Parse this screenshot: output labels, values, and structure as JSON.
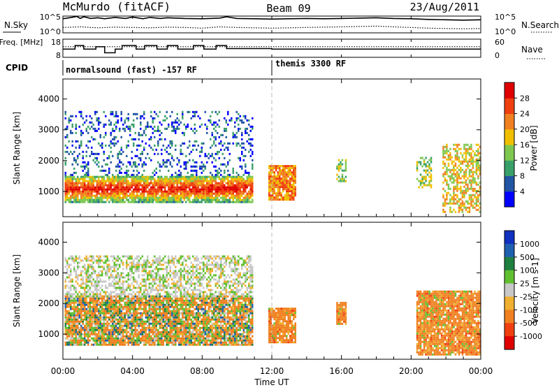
{
  "header": {
    "radar": "McMurdo (fitACF)",
    "beam": "Beam 09",
    "date": "23/Aug/2011"
  },
  "chart_data": [
    {
      "type": "line",
      "panel": "noise",
      "left_label": "N.Sky",
      "right_label": "N.Search",
      "left_ticks": [
        "10^5",
        "10^0"
      ],
      "right_ticks": [
        "10^5",
        "10^0"
      ],
      "series": [
        {
          "name": "N.Sky",
          "style": "solid",
          "x_hours": [
            0,
            0.5,
            0.8,
            1,
            1.2,
            1.6,
            2,
            2.4,
            3,
            3.6,
            4,
            4.6,
            5,
            5.6,
            6,
            7,
            8,
            9,
            9.4,
            10,
            11,
            12,
            13,
            14,
            15,
            16,
            17,
            18,
            19,
            20,
            21,
            22,
            23,
            24
          ],
          "values_log10": [
            4.2,
            4.6,
            4.9,
            4.3,
            4.8,
            4.3,
            4.5,
            4.2,
            4.6,
            4.3,
            4.7,
            4.2,
            4.6,
            4.3,
            4.5,
            4.3,
            4.2,
            4.4,
            4.8,
            4.3,
            4.2,
            4.1,
            4.2,
            4.3,
            4.2,
            4.3,
            4.4,
            4.5,
            4.3,
            4.2,
            4.0,
            3.9,
            3.8,
            3.9
          ]
        },
        {
          "name": "N.Search",
          "style": "dotted",
          "x_hours": [
            0,
            1,
            2,
            3,
            4,
            5,
            6,
            7,
            8,
            9,
            10,
            11,
            12,
            13,
            14,
            15,
            16,
            17,
            18,
            19,
            20,
            21,
            22,
            23,
            24
          ],
          "values_log10": [
            1.6,
            1.8,
            1.5,
            1.7,
            1.6,
            1.5,
            1.7,
            1.6,
            1.4,
            1.8,
            1.6,
            1.5,
            1.4,
            1.5,
            1.6,
            1.7,
            1.8,
            1.9,
            2.0,
            1.8,
            1.6,
            1.4,
            1.3,
            1.2,
            1.3
          ]
        }
      ]
    },
    {
      "type": "line",
      "panel": "frequency",
      "left_label": "Freq. [MHz]",
      "right_label": "Nave",
      "left_ticks": [
        "18",
        "8"
      ],
      "right_ticks": [
        "60",
        "0"
      ],
      "series": [
        {
          "name": "Freq",
          "style": "solid",
          "x_hours": [
            0,
            0.7,
            0.7,
            1.2,
            1.2,
            1.9,
            1.9,
            2.4,
            2.4,
            3,
            3,
            3.4,
            3.4,
            4.2,
            4.2,
            4.7,
            4.7,
            5.4,
            5.4,
            6,
            6,
            6.6,
            6.6,
            7.5,
            7.5,
            8.1,
            8.1,
            8.8,
            8.8,
            9.4,
            9.4,
            12,
            12,
            24
          ],
          "values_mhz": [
            12.5,
            12.5,
            14.5,
            14.5,
            12.5,
            12.5,
            13.8,
            13.8,
            10.5,
            10.5,
            12.5,
            12.5,
            14.5,
            14.5,
            12.5,
            12.5,
            14.5,
            14.5,
            12.5,
            12.5,
            14.5,
            14.5,
            12.5,
            12.5,
            14.5,
            14.5,
            12.5,
            12.5,
            14.5,
            14.5,
            12.8,
            12.8,
            12.5,
            12.5
          ]
        },
        {
          "name": "Nave",
          "style": "dotted",
          "x_hours": [
            0,
            24
          ],
          "values": [
            35,
            35
          ]
        }
      ]
    },
    {
      "type": "table",
      "panel": "cpid",
      "label": "CPID",
      "segments": [
        {
          "start_hour": 0,
          "text": "normalsound (fast) -157 RF"
        },
        {
          "start_hour": 12,
          "text": "themis 3300 RF"
        }
      ]
    },
    {
      "type": "heatmap",
      "panel": "power",
      "ylabel": "Slant Range [km]",
      "yticks": [
        1000,
        2000,
        3000,
        4000
      ],
      "ylim": [
        180,
        4650
      ],
      "colorbar_label": "Power [dB]",
      "colorbar_ticks": [
        4,
        8,
        12,
        16,
        20,
        24,
        28
      ],
      "colorbar_colors": [
        "#0000ff",
        "#2255a4",
        "#3aa06a",
        "#7ec850",
        "#f0c000",
        "#f08020",
        "#f04010",
        "#e00000"
      ],
      "bursts": [
        {
          "x_start": 0.1,
          "x_end": 10.9,
          "y_low": 620,
          "y_high": 1500,
          "level": 6,
          "note": "strong echo band"
        },
        {
          "x_start": 0.1,
          "x_end": 10.9,
          "y_low": 1500,
          "y_high": 3550,
          "level": 1,
          "note": "scattered weak echoes"
        },
        {
          "x_start": 11.8,
          "x_end": 13.4,
          "y_low": 700,
          "y_high": 1800,
          "level": 5
        },
        {
          "x_start": 15.7,
          "x_end": 16.3,
          "y_low": 1300,
          "y_high": 2000,
          "level": 3
        },
        {
          "x_start": 20.3,
          "x_end": 21.2,
          "y_low": 1100,
          "y_high": 2100,
          "level": 3
        },
        {
          "x_start": 21.8,
          "x_end": 24,
          "y_low": 300,
          "y_high": 2500,
          "level": 4
        }
      ]
    },
    {
      "type": "heatmap",
      "panel": "velocity",
      "ylabel": "Slant Range [km]",
      "yticks": [
        1000,
        2000,
        3000,
        4000
      ],
      "ylim": [
        180,
        4650
      ],
      "colorbar_label": "Velocity [m s-1]",
      "colorbar_ticks": [
        1000,
        500,
        100,
        25,
        -25,
        -100,
        -500,
        -1000
      ],
      "colorbar_colors": [
        "#1030c0",
        "#2060b0",
        "#208040",
        "#60c030",
        "#c8c8c8",
        "#f0b030",
        "#f08020",
        "#f04010",
        "#e00000"
      ],
      "bursts": [
        {
          "x_start": 0.1,
          "x_end": 10.9,
          "y_low": 620,
          "y_high": 2200,
          "level": 6
        },
        {
          "x_start": 0.1,
          "x_end": 10.9,
          "y_low": 2200,
          "y_high": 3550,
          "level": 4
        },
        {
          "x_start": 11.8,
          "x_end": 13.4,
          "y_low": 700,
          "y_high": 1800,
          "level": 6
        },
        {
          "x_start": 15.7,
          "x_end": 16.3,
          "y_low": 1300,
          "y_high": 2000,
          "level": 6
        },
        {
          "x_start": 20.3,
          "x_end": 24,
          "y_low": 300,
          "y_high": 2400,
          "level": 6
        }
      ]
    }
  ],
  "x_axis": {
    "xlabel": "Time UT",
    "xticks": [
      "00:00",
      "04:00",
      "08:00",
      "12:00",
      "16:00",
      "20:00",
      "00:00"
    ],
    "xlim_hours": [
      0,
      24
    ]
  }
}
